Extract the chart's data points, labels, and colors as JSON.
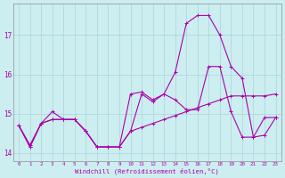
{
  "bg_color": "#cceef0",
  "grid_color": "#aad4d8",
  "line_color": "#aa00aa",
  "hours": [
    0,
    1,
    2,
    3,
    4,
    5,
    6,
    7,
    8,
    9,
    10,
    11,
    12,
    13,
    14,
    15,
    16,
    17,
    18,
    19,
    20,
    21,
    22,
    23
  ],
  "series1": [
    14.7,
    14.2,
    14.75,
    14.85,
    14.85,
    14.85,
    14.55,
    14.15,
    14.15,
    14.15,
    14.55,
    14.65,
    14.75,
    14.85,
    14.95,
    15.05,
    15.15,
    15.25,
    15.35,
    15.45,
    15.45,
    15.45,
    15.45,
    15.5
  ],
  "series2": [
    14.7,
    14.15,
    14.75,
    14.85,
    14.85,
    14.85,
    14.55,
    14.15,
    14.15,
    14.15,
    15.5,
    15.55,
    15.35,
    15.5,
    16.05,
    17.3,
    17.5,
    17.5,
    17.0,
    16.2,
    15.9,
    14.4,
    14.45,
    14.9
  ],
  "series3": [
    14.7,
    14.15,
    14.75,
    15.05,
    14.85,
    14.85,
    14.55,
    14.15,
    14.15,
    14.15,
    14.55,
    15.5,
    15.3,
    15.5,
    15.35,
    15.1,
    15.1,
    16.2,
    16.2,
    15.05,
    14.4,
    14.4,
    14.9,
    14.9
  ],
  "ylim": [
    13.8,
    17.8
  ],
  "yticks": [
    14,
    15,
    16,
    17
  ],
  "xlabel": "Windchill (Refroidissement éolien,°C)"
}
